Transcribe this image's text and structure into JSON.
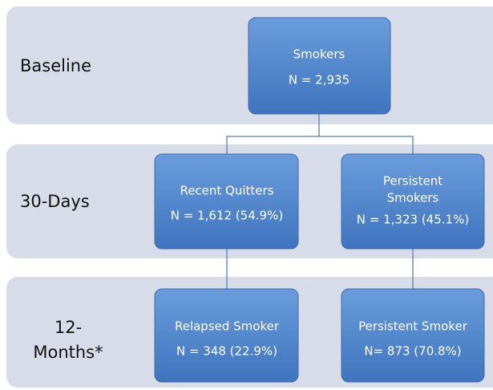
{
  "rows": [
    {
      "label": [
        "Baseline"
      ]
    },
    {
      "label": [
        "30-Days"
      ]
    },
    {
      "label": [
        "12-",
        "Months*"
      ]
    }
  ],
  "nodes": [
    {
      "title": [
        "Smokers"
      ],
      "count": "N = 2,935"
    },
    {
      "title": [
        "Recent Quitters"
      ],
      "count": "N = 1,612 (54.9%)"
    },
    {
      "title": [
        "Persistent",
        "Smokers"
      ],
      "count": "N = 1,323 (45.1%)"
    },
    {
      "title": [
        "Relapsed Smoker"
      ],
      "count": "N = 348 (22.9%)"
    },
    {
      "title": [
        "Persistent Smoker"
      ],
      "count": "N= 873 (70.8%)"
    }
  ]
}
